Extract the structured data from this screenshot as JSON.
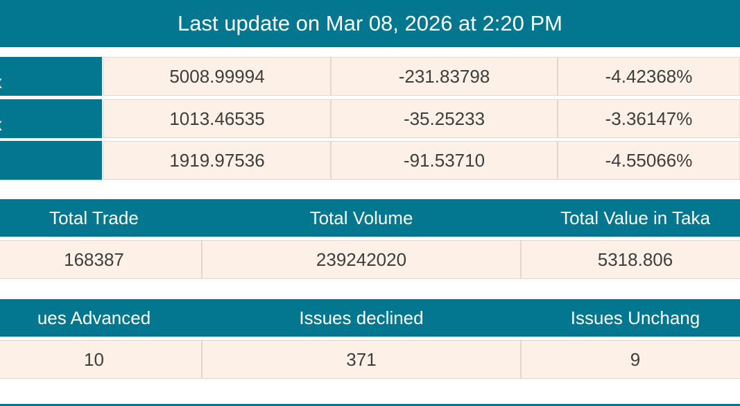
{
  "header": {
    "title": "Last update on Mar 08, 2026 at 2:20 PM"
  },
  "index_table": {
    "rows": [
      {
        "label": "x",
        "values": [
          "5008.99994",
          "-231.83798",
          "-4.42368%"
        ]
      },
      {
        "label": "x",
        "values": [
          "1013.46535",
          "-35.25233",
          "-3.36147%"
        ]
      },
      {
        "values": [
          "1919.97536",
          "-91.53710",
          "-4.55066%"
        ]
      }
    ]
  },
  "trade_table": {
    "headers": [
      "Total Trade",
      "Total Volume",
      "Total Value in Taka"
    ],
    "rows": [
      [
        "168387",
        "239242020",
        "5318.806"
      ]
    ]
  },
  "issues_table": {
    "headers": [
      "ues Advanced",
      "Issues declined",
      "Issues Unchang"
    ],
    "rows": [
      [
        "10",
        "371",
        "9"
      ]
    ]
  }
}
